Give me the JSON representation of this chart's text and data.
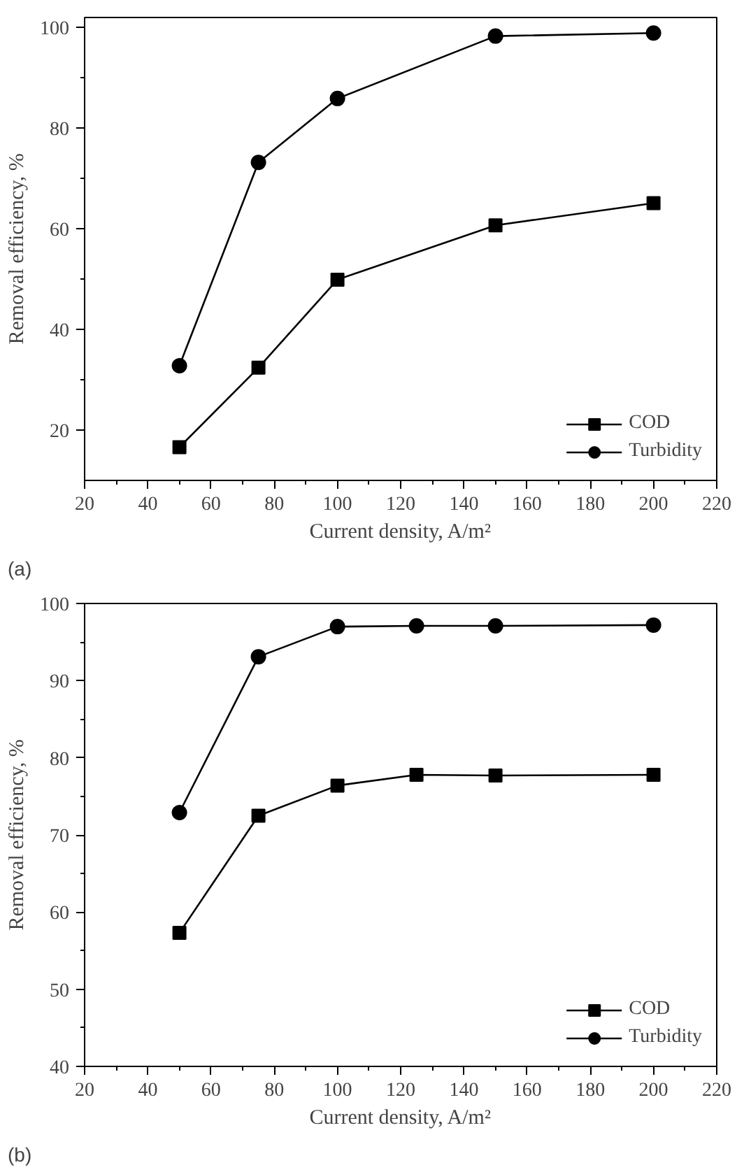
{
  "chart_data": [
    {
      "type": "line",
      "xlabel": "Current density, A/m²",
      "ylabel": "Removal efficiency, %",
      "annotations": [
        "(a)"
      ],
      "x": [
        50,
        75,
        100,
        150,
        200
      ],
      "series": [
        {
          "name": "COD",
          "color": "#000000",
          "marker": "square",
          "values": [
            16.6,
            32.4,
            49.9,
            60.7,
            65.1
          ]
        },
        {
          "name": "Turbidity",
          "color": "#000000",
          "marker": "circle",
          "values": [
            32.8,
            73.2,
            85.9,
            98.3,
            98.9
          ]
        }
      ],
      "xlim": [
        20,
        220
      ],
      "ylim": [
        10,
        102
      ],
      "xticks": [
        20,
        {
          "value": 30,
          "label": null
        },
        40,
        {
          "value": 50,
          "label": null
        },
        60,
        {
          "value": 70,
          "label": null
        },
        80,
        {
          "value": 90,
          "label": null
        },
        100,
        {
          "value": 110,
          "label": null
        },
        120,
        {
          "value": 130,
          "label": null
        },
        140,
        {
          "value": 150,
          "label": null
        },
        160,
        {
          "value": 170,
          "label": null
        },
        180,
        {
          "value": 190,
          "label": null
        },
        200,
        {
          "value": 210,
          "label": null
        },
        220
      ],
      "yticks": [
        20,
        {
          "value": 30,
          "label": null
        },
        40,
        {
          "value": 50,
          "label": null
        },
        60,
        {
          "value": 70,
          "label": null
        },
        80,
        {
          "value": 90,
          "label": null
        },
        100
      ],
      "legend": "bottom right",
      "grid": false,
      "line_style": "solid"
    },
    {
      "type": "line",
      "xlabel": "Current density, A/m²",
      "ylabel": "Removal efficiency, %",
      "annotations": [
        "(b)"
      ],
      "x": [
        50,
        75,
        100,
        125,
        150,
        200
      ],
      "series": [
        {
          "name": "COD",
          "color": "#000000",
          "marker": "square",
          "values": [
            57.3,
            72.5,
            76.4,
            77.8,
            77.7,
            77.8
          ]
        },
        {
          "name": "Turbidity",
          "color": "#000000",
          "marker": "circle",
          "values": [
            72.9,
            93.1,
            97.0,
            97.1,
            97.1,
            97.2
          ]
        }
      ],
      "xlim": [
        20,
        220
      ],
      "ylim": [
        40,
        100
      ],
      "xticks": [
        20,
        {
          "value": 30,
          "label": null
        },
        40,
        {
          "value": 50,
          "label": null
        },
        60,
        {
          "value": 70,
          "label": null
        },
        80,
        {
          "value": 90,
          "label": null
        },
        100,
        {
          "value": 110,
          "label": null
        },
        120,
        {
          "value": 130,
          "label": null
        },
        140,
        {
          "value": 150,
          "label": null
        },
        160,
        {
          "value": 170,
          "label": null
        },
        180,
        {
          "value": 190,
          "label": null
        },
        200,
        {
          "value": 210,
          "label": null
        },
        220
      ],
      "yticks": [
        40,
        {
          "value": 45,
          "label": null
        },
        50,
        {
          "value": 55,
          "label": null
        },
        60,
        {
          "value": 65,
          "label": null
        },
        70,
        {
          "value": 75,
          "label": null
        },
        80,
        {
          "value": 85,
          "label": null
        },
        90,
        {
          "value": 95,
          "label": null
        },
        100
      ],
      "legend": "bottom right",
      "grid": false,
      "line_style": "solid"
    }
  ]
}
